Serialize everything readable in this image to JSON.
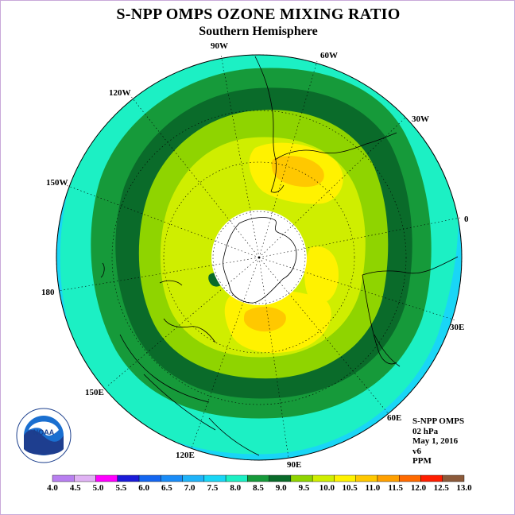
{
  "title": "S-NPP OMPS OZONE MIXING RATIO",
  "subtitle": "Southern Hemisphere",
  "projection": "south-polar-stereographic",
  "longitude_labels": [
    "90W",
    "60W",
    "30W",
    "0",
    "30E",
    "60E",
    "90E",
    "120E",
    "150E",
    "180",
    "150W",
    "120W"
  ],
  "info": {
    "instrument": "S-NPP OMPS",
    "level": "02 hPa",
    "date": "May 1, 2016",
    "version": "v6",
    "units": "PPM"
  },
  "logo": {
    "text": "NOAA",
    "icon": "noaa-logo-icon"
  },
  "colorbar": {
    "ticks": [
      "4.0",
      "4.5",
      "5.0",
      "5.5",
      "6.0",
      "6.5",
      "7.0",
      "7.5",
      "8.0",
      "8.5",
      "9.0",
      "9.5",
      "10.0",
      "10.5",
      "11.0",
      "11.5",
      "12.0",
      "12.5",
      "13.0"
    ],
    "colors": [
      "#b87ff0",
      "#e0b2f4",
      "#ff00ff",
      "#1b1bd8",
      "#1466f0",
      "#1a8cf7",
      "#1fb3f9",
      "#19d6f6",
      "#1cf0c4",
      "#169a3a",
      "#0a6b2a",
      "#8fd400",
      "#cfee00",
      "#fff200",
      "#ffc800",
      "#ffa000",
      "#ff6a00",
      "#ff1e00",
      "#8c5a3a"
    ]
  },
  "field_colors": {
    "band_7_5_8_0": "#19d6f6",
    "band_8_0_8_5": "#1cf0c4",
    "band_8_5_9_0": "#169a3a",
    "band_9_0_9_5": "#0a6b2a",
    "band_9_5_10_0": "#8fd400",
    "band_10_0_10_5": "#cfee00",
    "band_10_5_11_0": "#fff200",
    "band_11_0_11_5": "#ffc800",
    "missing_data": "#ffffff"
  }
}
